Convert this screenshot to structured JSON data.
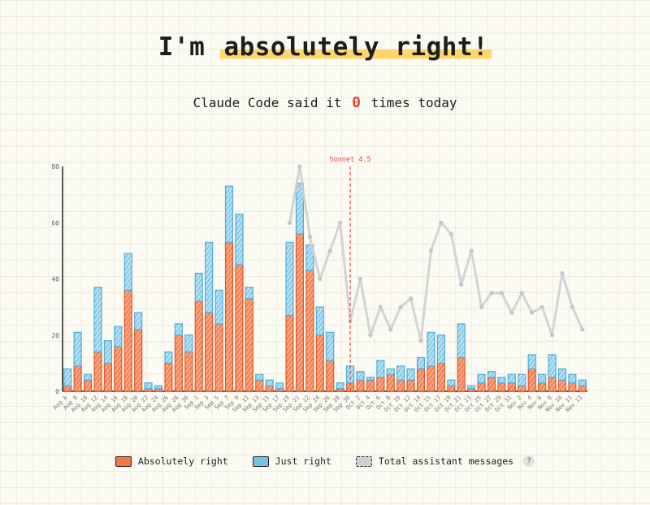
{
  "header": {
    "title_prefix": "I'm ",
    "title_highlight": "absolutely right!",
    "subtitle_before": "Claude Code said it",
    "subtitle_count": "0",
    "subtitle_after": "times today"
  },
  "legend": {
    "absolutely": "Absolutely right",
    "just": "Just right",
    "total": "Total assistant messages",
    "help": "?"
  },
  "colors": {
    "absolutely": "#f0774a",
    "just": "#78c3e4",
    "total": "#cfcfd3",
    "annotation": "#e8453c"
  },
  "chart_data": {
    "type": "bar",
    "ylim": [
      0,
      80
    ],
    "yticks": [
      0,
      20,
      40,
      60,
      80
    ],
    "annotation": {
      "label": "Sonnet 4.5",
      "at_category": "Sep 30"
    },
    "categories": [
      "Aug 6",
      "Aug 8",
      "Aug 10",
      "Aug 12",
      "Aug 14",
      "Aug 16",
      "Aug 18",
      "Aug 20",
      "Aug 22",
      "Aug 24",
      "Aug 26",
      "Aug 28",
      "Aug 30",
      "Sep 1",
      "Sep 3",
      "Sep 5",
      "Sep 7",
      "Sep 9",
      "Sep 11",
      "Sep 13",
      "Sep 15",
      "Sep 17",
      "Sep 19",
      "Sep 21",
      "Sep 22",
      "Sep 24",
      "Sep 26",
      "Sep 28",
      "Sep 30",
      "Oct 2",
      "Oct 4",
      "Oct 6",
      "Oct 8",
      "Oct 10",
      "Oct 12",
      "Oct 14",
      "Oct 15",
      "Oct 17",
      "Oct 19",
      "Oct 21",
      "Oct 23",
      "Oct 25",
      "Oct 27",
      "Oct 29",
      "Oct 31",
      "Nov 2",
      "Nov 4",
      "Nov 6",
      "Nov 8",
      "Nov 10",
      "Nov 11",
      "Nov 13"
    ],
    "series": [
      {
        "name": "Absolutely right",
        "stack": "a",
        "values": [
          2,
          9,
          4,
          14,
          10,
          16,
          36,
          22,
          1,
          1,
          10,
          20,
          14,
          32,
          28,
          24,
          53,
          45,
          33,
          4,
          2,
          1,
          27,
          56,
          43,
          20,
          11,
          1,
          3,
          4,
          4,
          5,
          6,
          4,
          4,
          8,
          9,
          10,
          2,
          12,
          1,
          3,
          5,
          3,
          3,
          2,
          8,
          3,
          5,
          4,
          3,
          2
        ]
      },
      {
        "name": "Just right",
        "stack": "a",
        "values": [
          6,
          12,
          2,
          23,
          8,
          7,
          13,
          6,
          2,
          1,
          4,
          4,
          6,
          10,
          25,
          12,
          20,
          18,
          4,
          2,
          2,
          2,
          26,
          18,
          9,
          10,
          10,
          2,
          6,
          3,
          1,
          6,
          2,
          5,
          4,
          4,
          12,
          10,
          2,
          12,
          1,
          3,
          2,
          2,
          3,
          4,
          5,
          3,
          8,
          4,
          3,
          2
        ]
      },
      {
        "name": "Total assistant messages",
        "values": [
          null,
          null,
          null,
          null,
          null,
          null,
          null,
          null,
          null,
          null,
          null,
          null,
          null,
          null,
          null,
          null,
          null,
          null,
          null,
          null,
          null,
          null,
          60,
          80,
          55,
          40,
          50,
          60,
          25,
          40,
          20,
          30,
          22,
          30,
          33,
          18,
          50,
          60,
          56,
          38,
          50,
          30,
          35,
          35,
          28,
          35,
          28,
          30,
          20,
          42,
          30,
          22
        ]
      }
    ]
  }
}
